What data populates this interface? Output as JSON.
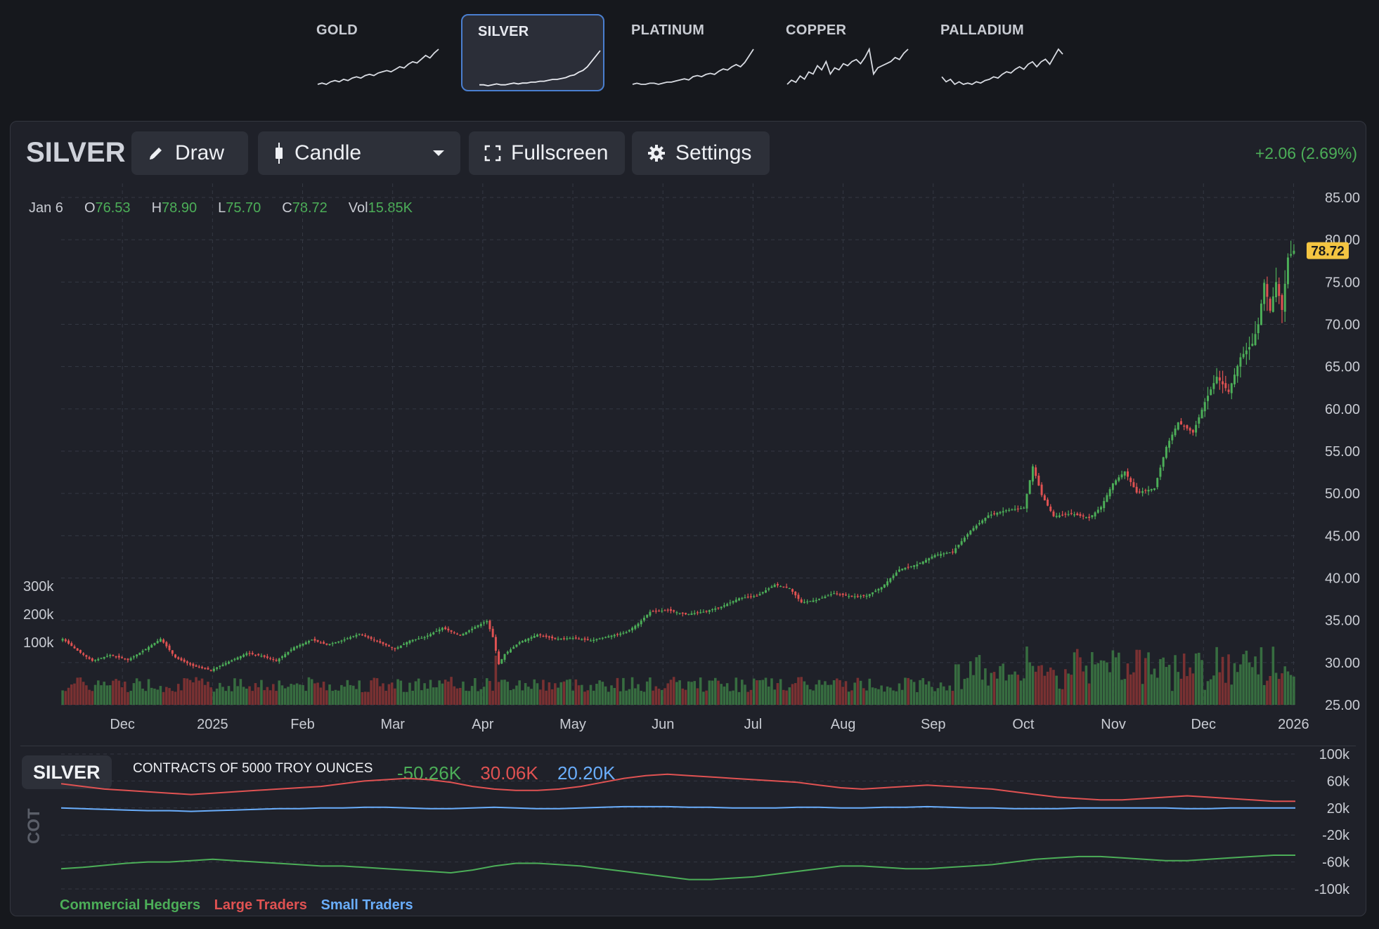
{
  "tabs": [
    {
      "label": "GOLD",
      "active": false,
      "spark": [
        10,
        11,
        10,
        12,
        13,
        12,
        14,
        13,
        15,
        16,
        15,
        17,
        18,
        17,
        19,
        20,
        21,
        20,
        22,
        24,
        23,
        26,
        28,
        27,
        30,
        33,
        31,
        35,
        38
      ]
    },
    {
      "label": "SILVER",
      "active": true,
      "spark": [
        8,
        8,
        7,
        8,
        9,
        8,
        8,
        9,
        10,
        9,
        10,
        10,
        11,
        11,
        12,
        12,
        13,
        14,
        14,
        15,
        16,
        18,
        19,
        22,
        24,
        28,
        34,
        40,
        46
      ]
    },
    {
      "label": "PLATINUM",
      "active": false,
      "spark": [
        8,
        9,
        8,
        8,
        9,
        9,
        8,
        9,
        10,
        10,
        11,
        12,
        13,
        12,
        15,
        16,
        15,
        17,
        18,
        17,
        20,
        22,
        21,
        24,
        26,
        24,
        28,
        34,
        40
      ]
    },
    {
      "label": "COPPER",
      "active": false,
      "spark": [
        10,
        14,
        12,
        18,
        15,
        22,
        20,
        28,
        24,
        32,
        20,
        26,
        24,
        30,
        28,
        32,
        34,
        30,
        36,
        44,
        20,
        26,
        28,
        30,
        32,
        36,
        34,
        40,
        44
      ]
    },
    {
      "label": "PALLADIUM",
      "active": false,
      "spark": [
        18,
        14,
        16,
        12,
        14,
        12,
        13,
        12,
        14,
        13,
        15,
        16,
        18,
        17,
        20,
        22,
        21,
        24,
        26,
        24,
        28,
        30,
        26,
        30,
        32,
        28,
        34,
        40,
        36
      ]
    }
  ],
  "panel": {
    "symbol": "SILVER",
    "draw_label": "Draw",
    "chart_type_label": "Candle",
    "fullscreen_label": "Fullscreen",
    "settings_label": "Settings",
    "change": "+2.06 (2.69%)"
  },
  "ohlc": {
    "date": "Jan 6",
    "o_label": "O",
    "o": "76.53",
    "h_label": "H",
    "h": "78.90",
    "l_label": "L",
    "l": "75.70",
    "c_label": "C",
    "c": "78.72",
    "vol_label": "Vol",
    "vol": "15.85K"
  },
  "chart_data": [
    {
      "type": "candlestick",
      "ylim": [
        25,
        85
      ],
      "y_ticks": [
        "85.00",
        "80.00",
        "75.00",
        "70.00",
        "65.00",
        "60.00",
        "55.00",
        "50.00",
        "45.00",
        "40.00",
        "35.00",
        "30.00",
        "25.00"
      ],
      "x_ticks": [
        "Dec",
        "2025",
        "Feb",
        "Mar",
        "Apr",
        "May",
        "Jun",
        "Jul",
        "Aug",
        "Sep",
        "Oct",
        "Nov",
        "Dec",
        "2026"
      ],
      "last_price": "78.72",
      "volume_ticks": [
        "300k",
        "200k",
        "100k"
      ],
      "close_anchors": [
        [
          0,
          32.8
        ],
        [
          5,
          31.4
        ],
        [
          10,
          30.2
        ],
        [
          16,
          30.9
        ],
        [
          22,
          30.3
        ],
        [
          28,
          31.6
        ],
        [
          33,
          32.8
        ],
        [
          38,
          30.6
        ],
        [
          44,
          29.6
        ],
        [
          50,
          29.1
        ],
        [
          56,
          30.1
        ],
        [
          62,
          31.1
        ],
        [
          67,
          30.8
        ],
        [
          72,
          30.2
        ],
        [
          78,
          31.8
        ],
        [
          84,
          32.7
        ],
        [
          89,
          32.1
        ],
        [
          94,
          32.6
        ],
        [
          100,
          33.4
        ],
        [
          106,
          32.5
        ],
        [
          112,
          31.6
        ],
        [
          117,
          32.6
        ],
        [
          122,
          33.0
        ],
        [
          128,
          34.1
        ],
        [
          134,
          33.2
        ],
        [
          140,
          34.4
        ],
        [
          143,
          34.9
        ],
        [
          145,
          33.0
        ],
        [
          147,
          29.8
        ],
        [
          149,
          31.0
        ],
        [
          154,
          32.4
        ],
        [
          160,
          33.3
        ],
        [
          166,
          32.8
        ],
        [
          172,
          32.9
        ],
        [
          178,
          32.6
        ],
        [
          184,
          33.1
        ],
        [
          190,
          33.6
        ],
        [
          194,
          34.6
        ],
        [
          198,
          36.0
        ],
        [
          204,
          36.2
        ],
        [
          210,
          35.7
        ],
        [
          216,
          36.0
        ],
        [
          222,
          36.6
        ],
        [
          228,
          37.6
        ],
        [
          234,
          37.9
        ],
        [
          240,
          39.2
        ],
        [
          245,
          38.8
        ],
        [
          249,
          37.1
        ],
        [
          254,
          37.4
        ],
        [
          260,
          38.2
        ],
        [
          266,
          37.8
        ],
        [
          271,
          37.9
        ],
        [
          276,
          38.9
        ],
        [
          282,
          41.0
        ],
        [
          288,
          41.6
        ],
        [
          294,
          42.7
        ],
        [
          300,
          43.1
        ],
        [
          306,
          45.6
        ],
        [
          312,
          47.4
        ],
        [
          318,
          48.0
        ],
        [
          324,
          48.3
        ],
        [
          327,
          53.2
        ],
        [
          330,
          49.8
        ],
        [
          334,
          47.3
        ],
        [
          340,
          47.6
        ],
        [
          346,
          47.1
        ],
        [
          350,
          48.4
        ],
        [
          354,
          51.2
        ],
        [
          358,
          52.6
        ],
        [
          362,
          50.1
        ],
        [
          368,
          50.6
        ],
        [
          372,
          55.5
        ],
        [
          376,
          58.4
        ],
        [
          381,
          57.2
        ],
        [
          385,
          60.8
        ],
        [
          389,
          63.8
        ],
        [
          393,
          62.0
        ],
        [
          397,
          66.1
        ],
        [
          401,
          67.7
        ],
        [
          403,
          70.0
        ],
        [
          405,
          74.9
        ],
        [
          407,
          71.6
        ],
        [
          409,
          75.0
        ],
        [
          411,
          71.7
        ],
        [
          413,
          77.9
        ],
        [
          415,
          78.7
        ]
      ]
    },
    {
      "type": "line",
      "title": "CONTRACTS OF 5000 TROY OUNCES",
      "ylim": [
        -100,
        100
      ],
      "y_ticks": [
        "100k",
        "60k",
        "20k",
        "-20k",
        "-60k",
        "-100k"
      ],
      "series": [
        {
          "name": "Commercial Hedgers",
          "latest": "-50.26K",
          "color": "#4cae58",
          "values": [
            -70,
            -68,
            -65,
            -62,
            -60,
            -60,
            -58,
            -56,
            -58,
            -60,
            -62,
            -64,
            -66,
            -66,
            -68,
            -70,
            -72,
            -74,
            -76,
            -72,
            -66,
            -62,
            -62,
            -64,
            -66,
            -70,
            -74,
            -78,
            -82,
            -86,
            -86,
            -84,
            -82,
            -78,
            -74,
            -70,
            -66,
            -66,
            -68,
            -70,
            -70,
            -68,
            -66,
            -64,
            -60,
            -56,
            -54,
            -52,
            -52,
            -54,
            -56,
            -58,
            -58,
            -56,
            -54,
            -52,
            -50,
            -50
          ]
        },
        {
          "name": "Large Traders",
          "latest": "30.06K",
          "color": "#e05252",
          "values": [
            56,
            52,
            48,
            46,
            44,
            42,
            40,
            42,
            44,
            46,
            48,
            50,
            52,
            56,
            60,
            62,
            64,
            62,
            58,
            52,
            48,
            46,
            46,
            48,
            52,
            58,
            64,
            68,
            70,
            68,
            66,
            64,
            62,
            60,
            58,
            54,
            50,
            48,
            50,
            52,
            54,
            52,
            50,
            48,
            44,
            40,
            36,
            34,
            32,
            32,
            34,
            36,
            38,
            36,
            34,
            32,
            30,
            30
          ]
        },
        {
          "name": "Small Traders",
          "latest": "20.20K",
          "color": "#6aaefc",
          "values": [
            20,
            19,
            18,
            17,
            16,
            16,
            15,
            16,
            17,
            18,
            19,
            19,
            20,
            20,
            21,
            21,
            20,
            19,
            19,
            20,
            21,
            20,
            19,
            19,
            20,
            21,
            22,
            22,
            22,
            21,
            21,
            20,
            20,
            20,
            21,
            21,
            20,
            20,
            21,
            21,
            22,
            21,
            20,
            20,
            19,
            19,
            19,
            20,
            20,
            20,
            20,
            20,
            19,
            19,
            20,
            20,
            20,
            20
          ]
        }
      ]
    }
  ],
  "cot": {
    "symbol": "SILVER",
    "side_label": "COT"
  }
}
